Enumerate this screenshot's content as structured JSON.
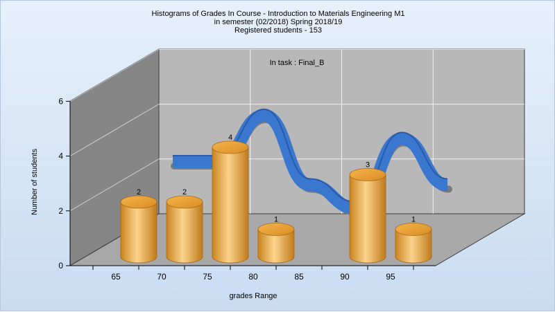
{
  "title_lines": [
    "Histograms of Grades  In Course - Introduction to Materials Engineering M1",
    "in semester  (02/2018) Spring 2018/19",
    "Registered students - 153"
  ],
  "chart_data": {
    "type": "bar",
    "title": "Histograms of Grades  In Course - Introduction to Materials Engineering M1",
    "subtitle": "in semester  (02/2018) Spring 2018/19 | Registered students - 153",
    "annotation": "In task : Final_B",
    "xlabel": "grades Range",
    "ylabel": "Number of students",
    "x_ticks": [
      "65",
      "70",
      "75",
      "80",
      "85",
      "90",
      "95"
    ],
    "y_ticks": [
      "0",
      "2",
      "4",
      "6"
    ],
    "ylim": [
      0,
      6
    ],
    "grid": true,
    "bars": [
      {
        "x": 65,
        "value": 2,
        "label": "2"
      },
      {
        "x": 70,
        "value": 2,
        "label": "2"
      },
      {
        "x": 75,
        "value": 4,
        "label": "4"
      },
      {
        "x": 80,
        "value": 1,
        "label": "1"
      },
      {
        "x": 90,
        "value": 3,
        "label": "3"
      },
      {
        "x": 95,
        "value": 1,
        "label": "1"
      }
    ],
    "ribbon_values": [
      2,
      2,
      4,
      1,
      0,
      3,
      1
    ],
    "colors": {
      "bar": "#f0b048",
      "bar_light": "#fbd890",
      "bar_dark": "#c07a1a",
      "ribbon": "#3a78d0",
      "ribbon_dark": "#2a5aa8",
      "ribbon_shadow": "#7a7a7a",
      "back_wall": "#b8b8b8",
      "side_wall": "#868686",
      "floor": "#a8a8a8"
    }
  }
}
